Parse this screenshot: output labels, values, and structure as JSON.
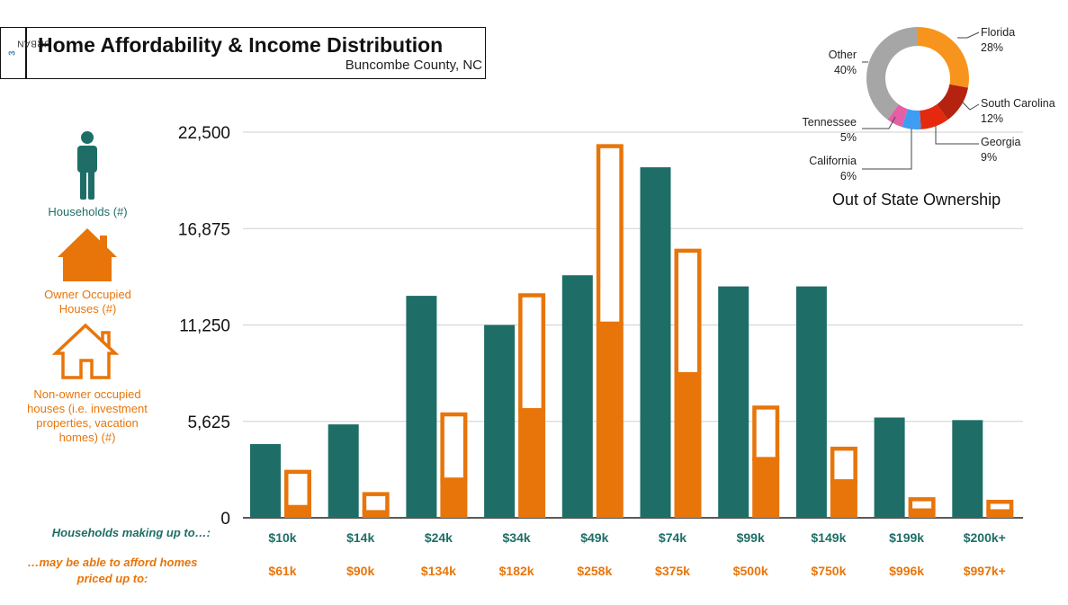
{
  "header": {
    "brand_prefix": "URBAN",
    "brand_suffix": "3",
    "title": "Home Affordability & Income Distribution",
    "subtitle": "Buncombe County, NC"
  },
  "legend": {
    "households": "Households (#)",
    "owner_occupied": "Owner Occupied Houses (#)",
    "non_owner_occupied": "Non-owner occupied houses (i.e. investment properties, vacation homes) (#)"
  },
  "rows": {
    "income_label": "Households making up to…:",
    "afford_label": "…may be able to afford homes priced up to:"
  },
  "colors": {
    "teal": "#1e6e67",
    "orange": "#e8750a",
    "florida": "#f7941d",
    "south_carolina": "#b5220f",
    "georgia": "#e5290f",
    "california": "#3d9df2",
    "tennessee": "#e45fa5",
    "other": "#a6a6a6"
  },
  "chart_data": [
    {
      "type": "bar",
      "title": "Home Affordability & Income Distribution",
      "categories": [
        "$10k",
        "$14k",
        "$24k",
        "$34k",
        "$49k",
        "$74k",
        "$99k",
        "$149k",
        "$199k",
        "$200k+"
      ],
      "price_labels": [
        "$61k",
        "$90k",
        "$134k",
        "$182k",
        "$258k",
        "$375k",
        "$500k",
        "$750k",
        "$996k",
        "$997k+"
      ],
      "ylim": [
        0,
        22500
      ],
      "yticks": [
        0,
        5625,
        11250,
        16875,
        22500
      ],
      "ytick_labels": [
        "0",
        "5,625",
        "11,250",
        "16,875",
        "22,500"
      ],
      "grid": true,
      "series": [
        {
          "name": "Households (#)",
          "values": [
            4300,
            5450,
            12950,
            11250,
            14150,
            20450,
            13500,
            13500,
            5850,
            5700
          ]
        },
        {
          "name": "Owner Occupied Houses (#)",
          "values": [
            750,
            450,
            2350,
            6400,
            11450,
            8500,
            3550,
            2250,
            550,
            500
          ]
        },
        {
          "name": "Non-owner occupied houses (#)",
          "values": [
            2050,
            1050,
            3800,
            6700,
            10350,
            7200,
            3000,
            1900,
            650,
            550
          ]
        }
      ]
    },
    {
      "type": "pie",
      "title": "Out of State Ownership",
      "labels": [
        "Florida",
        "South Carolina",
        "Georgia",
        "California",
        "Tennessee",
        "Other"
      ],
      "values": [
        28,
        12,
        9,
        6,
        5,
        40
      ],
      "value_labels": [
        "28%",
        "12%",
        "9%",
        "6%",
        "5%",
        "40%"
      ]
    }
  ]
}
